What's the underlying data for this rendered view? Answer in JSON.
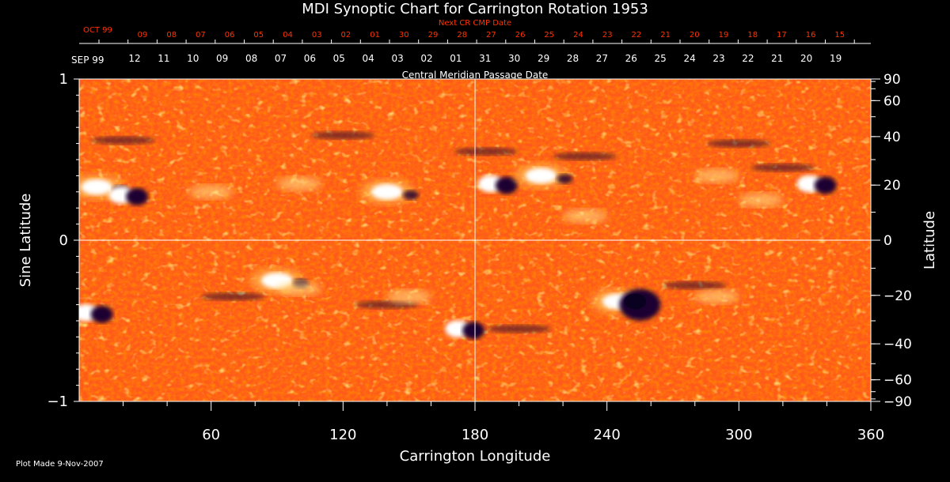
{
  "chart_data": {
    "type": "heatmap",
    "title": "MDI Synoptic Chart for Carrington Rotation 1953",
    "xlabel": "Carrington Longitude",
    "ylabel_left": "Sine Latitude",
    "ylabel_right": "Latitude",
    "xlim": [
      0,
      360
    ],
    "ylim": [
      -1,
      1
    ],
    "x_ticks": [
      60,
      120,
      180,
      240,
      300,
      360
    ],
    "y_ticks_left": [
      -1,
      0,
      1
    ],
    "y_ticks_right_deg": [
      90,
      60,
      40,
      20,
      0,
      -20,
      -40,
      -60,
      -90
    ],
    "top_axes": {
      "next_cr_label": "Next CR CMP Date",
      "next_cr_month": "OCT 99",
      "next_cr_dates": [
        "09",
        "08",
        "07",
        "06",
        "05",
        "04",
        "03",
        "02",
        "01",
        "30",
        "29",
        "28",
        "27",
        "26",
        "25",
        "24",
        "23",
        "22",
        "21",
        "20",
        "19",
        "18",
        "17",
        "16",
        "15"
      ],
      "cmp_label": "Central Meridian Passage Date",
      "cmp_month": "SEP 99",
      "cmp_dates": [
        "12",
        "11",
        "10",
        "09",
        "08",
        "07",
        "06",
        "05",
        "04",
        "03",
        "02",
        "01",
        "31",
        "30",
        "29",
        "28",
        "27",
        "26",
        "25",
        "24",
        "23",
        "22",
        "21",
        "20",
        "19"
      ]
    },
    "active_regions": [
      {
        "lon": 8,
        "sinlat": 0.33,
        "polarity": "positive"
      },
      {
        "lon": 22,
        "sinlat": 0.28,
        "polarity": "mixed"
      },
      {
        "lon": 6,
        "sinlat": -0.45,
        "polarity": "mixed"
      },
      {
        "lon": 90,
        "sinlat": -0.25,
        "polarity": "positive"
      },
      {
        "lon": 140,
        "sinlat": 0.3,
        "polarity": "positive"
      },
      {
        "lon": 175,
        "sinlat": -0.55,
        "polarity": "mixed"
      },
      {
        "lon": 190,
        "sinlat": 0.35,
        "polarity": "mixed"
      },
      {
        "lon": 210,
        "sinlat": 0.4,
        "polarity": "positive"
      },
      {
        "lon": 245,
        "sinlat": -0.38,
        "polarity": "positive"
      },
      {
        "lon": 255,
        "sinlat": -0.4,
        "polarity": "negative"
      },
      {
        "lon": 335,
        "sinlat": 0.35,
        "polarity": "mixed"
      }
    ],
    "colors": {
      "background": "#000000",
      "field_base": "#ff5a1a",
      "positive": "#ffffff",
      "negative": "#1a0030",
      "title": "#ffffff",
      "top_axis": "#ff3300",
      "grid": "#ffffff"
    }
  },
  "footer": {
    "plot_made": "Plot Made  9-Nov-2007"
  }
}
